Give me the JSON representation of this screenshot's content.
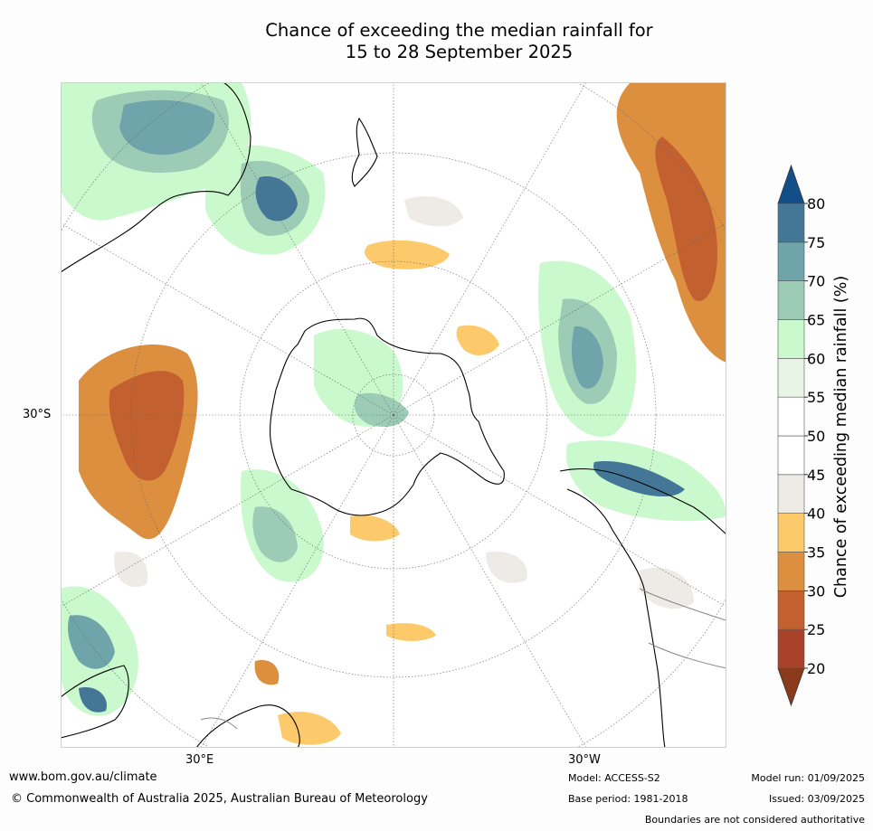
{
  "title": {
    "line1": "Chance of exceeding the median rainfall for",
    "line2": "15 to 28 September 2025"
  },
  "map": {
    "projection": "south polar stereographic",
    "axis_labels": {
      "lat": "30°S",
      "lon_east": "30°E",
      "lon_west": "30°W"
    }
  },
  "colorbar": {
    "label": "Chance of exceeding median rainfall (%)",
    "ticks": [
      "20",
      "25",
      "30",
      "35",
      "40",
      "45",
      "50",
      "55",
      "60",
      "65",
      "70",
      "75",
      "80"
    ],
    "colors": [
      "#a8432a",
      "#c3602f",
      "#dd8f40",
      "#fcca6b",
      "#eeeae6",
      "#ffffff",
      "#ffffff",
      "#e8f4e6",
      "#c9f9cc",
      "#9dccb6",
      "#6fa4ab",
      "#447797"
    ],
    "extend_low_color": "#8c3a1c",
    "extend_high_color": "#124f8a"
  },
  "footer": {
    "website": "www.bom.gov.au/climate",
    "copyright": "© Commonwealth of Australia 2025, Australian Bureau of Meteorology",
    "model": "Model: ACCESS-S2",
    "base_period": "Base period: 1981-2018",
    "model_run": "Model run: 01/09/2025",
    "issued": "Issued: 03/09/2025",
    "disclaimer": "Boundaries are not considered authoritative"
  }
}
